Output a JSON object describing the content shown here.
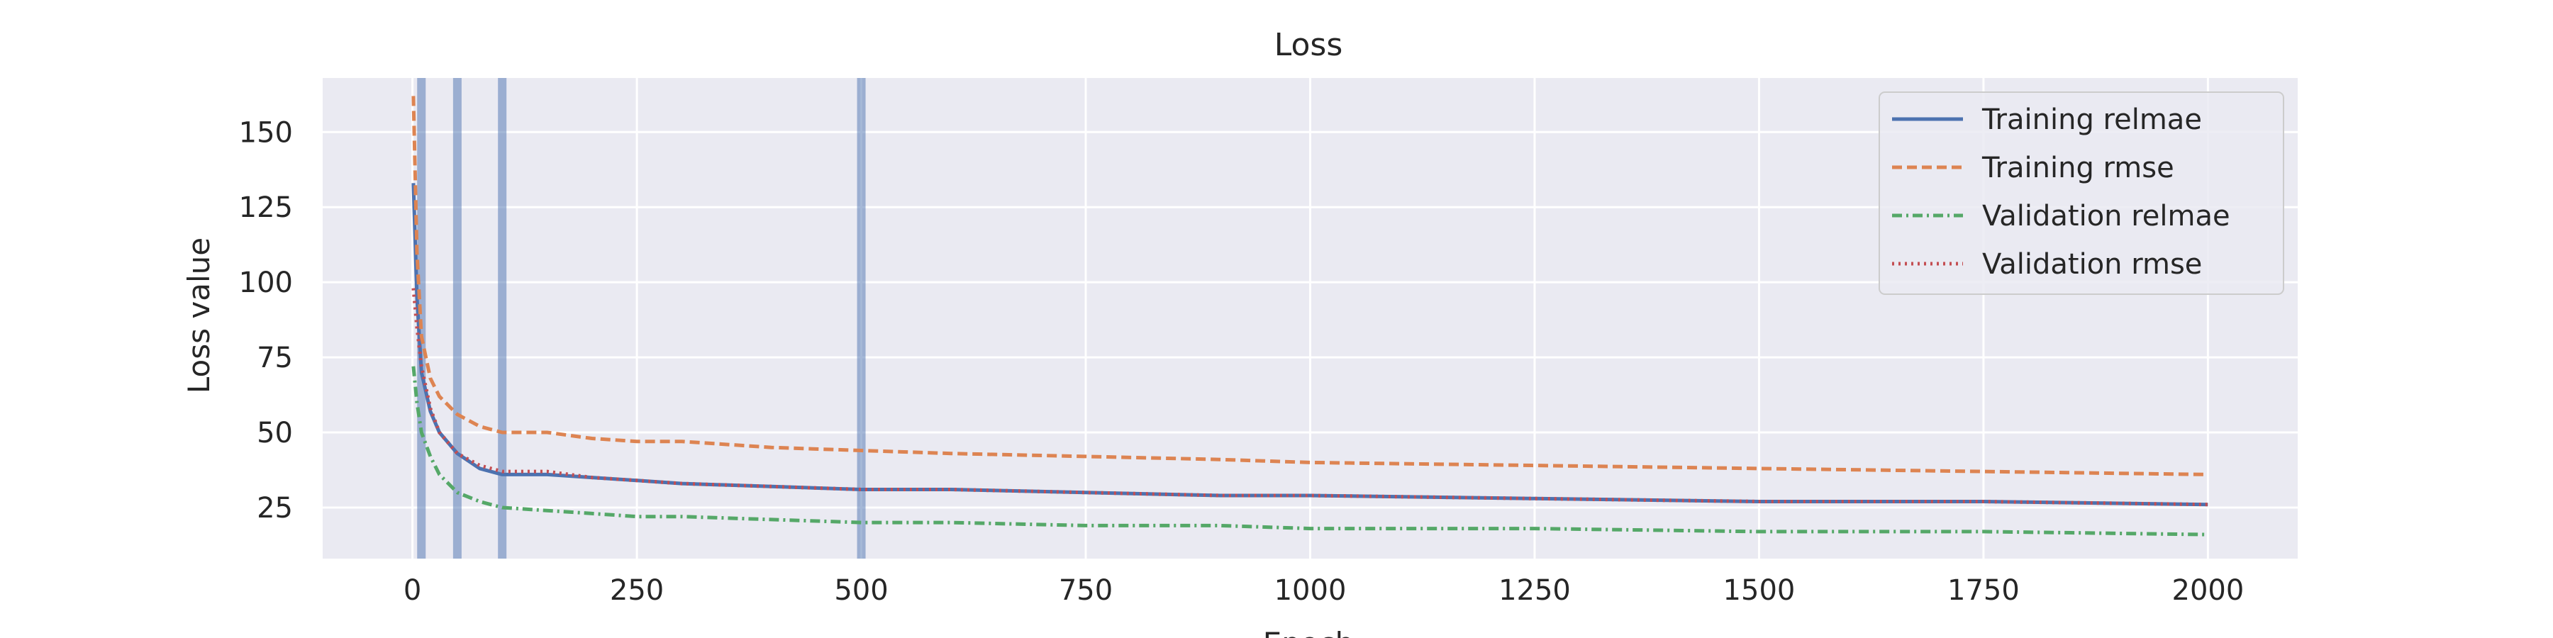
{
  "chart_data": {
    "type": "line",
    "title": "Loss",
    "xlabel": "Epoch",
    "ylabel": "Loss value",
    "xlim": [
      -100,
      2100
    ],
    "ylim": [
      8,
      168
    ],
    "xticks": [
      0,
      250,
      500,
      750,
      1000,
      1250,
      1500,
      1750,
      2000
    ],
    "yticks": [
      25,
      50,
      75,
      100,
      125,
      150
    ],
    "grid": true,
    "legend_position": "top-right",
    "vertical_markers": [
      10,
      50,
      100,
      500
    ],
    "colors": {
      "background": "#eaeaf2",
      "grid": "#ffffff",
      "markers": "#4c72b0"
    },
    "series": [
      {
        "name": "Training relmae",
        "color": "#4c72b0",
        "style": "solid",
        "x": [
          1,
          5,
          10,
          20,
          30,
          50,
          75,
          100,
          150,
          200,
          250,
          300,
          400,
          500,
          600,
          750,
          900,
          1000,
          1250,
          1500,
          1750,
          2000
        ],
        "y": [
          133,
          95,
          70,
          57,
          50,
          43,
          38,
          36,
          36,
          35,
          34,
          33,
          32,
          31,
          31,
          30,
          29,
          29,
          28,
          27,
          27,
          26
        ]
      },
      {
        "name": "Training rmse",
        "color": "#dd8452",
        "style": "dashed",
        "x": [
          1,
          5,
          10,
          20,
          30,
          50,
          75,
          100,
          150,
          200,
          250,
          300,
          400,
          500,
          600,
          750,
          900,
          1000,
          1250,
          1500,
          1750,
          2000
        ],
        "y": [
          162,
          110,
          82,
          68,
          62,
          56,
          52,
          50,
          50,
          48,
          47,
          47,
          45,
          44,
          43,
          42,
          41,
          40,
          39,
          38,
          37,
          36
        ]
      },
      {
        "name": "Validation relmae",
        "color": "#55a868",
        "style": "dashdot",
        "x": [
          1,
          5,
          10,
          20,
          30,
          50,
          75,
          100,
          150,
          200,
          250,
          300,
          400,
          500,
          600,
          750,
          900,
          1000,
          1250,
          1500,
          1750,
          2000
        ],
        "y": [
          72,
          60,
          50,
          42,
          36,
          30,
          27,
          25,
          24,
          23,
          22,
          22,
          21,
          20,
          20,
          19,
          19,
          18,
          18,
          17,
          17,
          16
        ]
      },
      {
        "name": "Validation rmse",
        "color": "#c44e52",
        "style": "dotted",
        "x": [
          1,
          5,
          10,
          20,
          30,
          50,
          75,
          100,
          150,
          200,
          250,
          300,
          400,
          500,
          600,
          750,
          900,
          1000,
          1250,
          1500,
          1750,
          2000
        ],
        "y": [
          98,
          85,
          72,
          58,
          50,
          43,
          39,
          37,
          37,
          35,
          34,
          33,
          32,
          31,
          31,
          30,
          29,
          29,
          28,
          27,
          27,
          26
        ]
      }
    ]
  }
}
